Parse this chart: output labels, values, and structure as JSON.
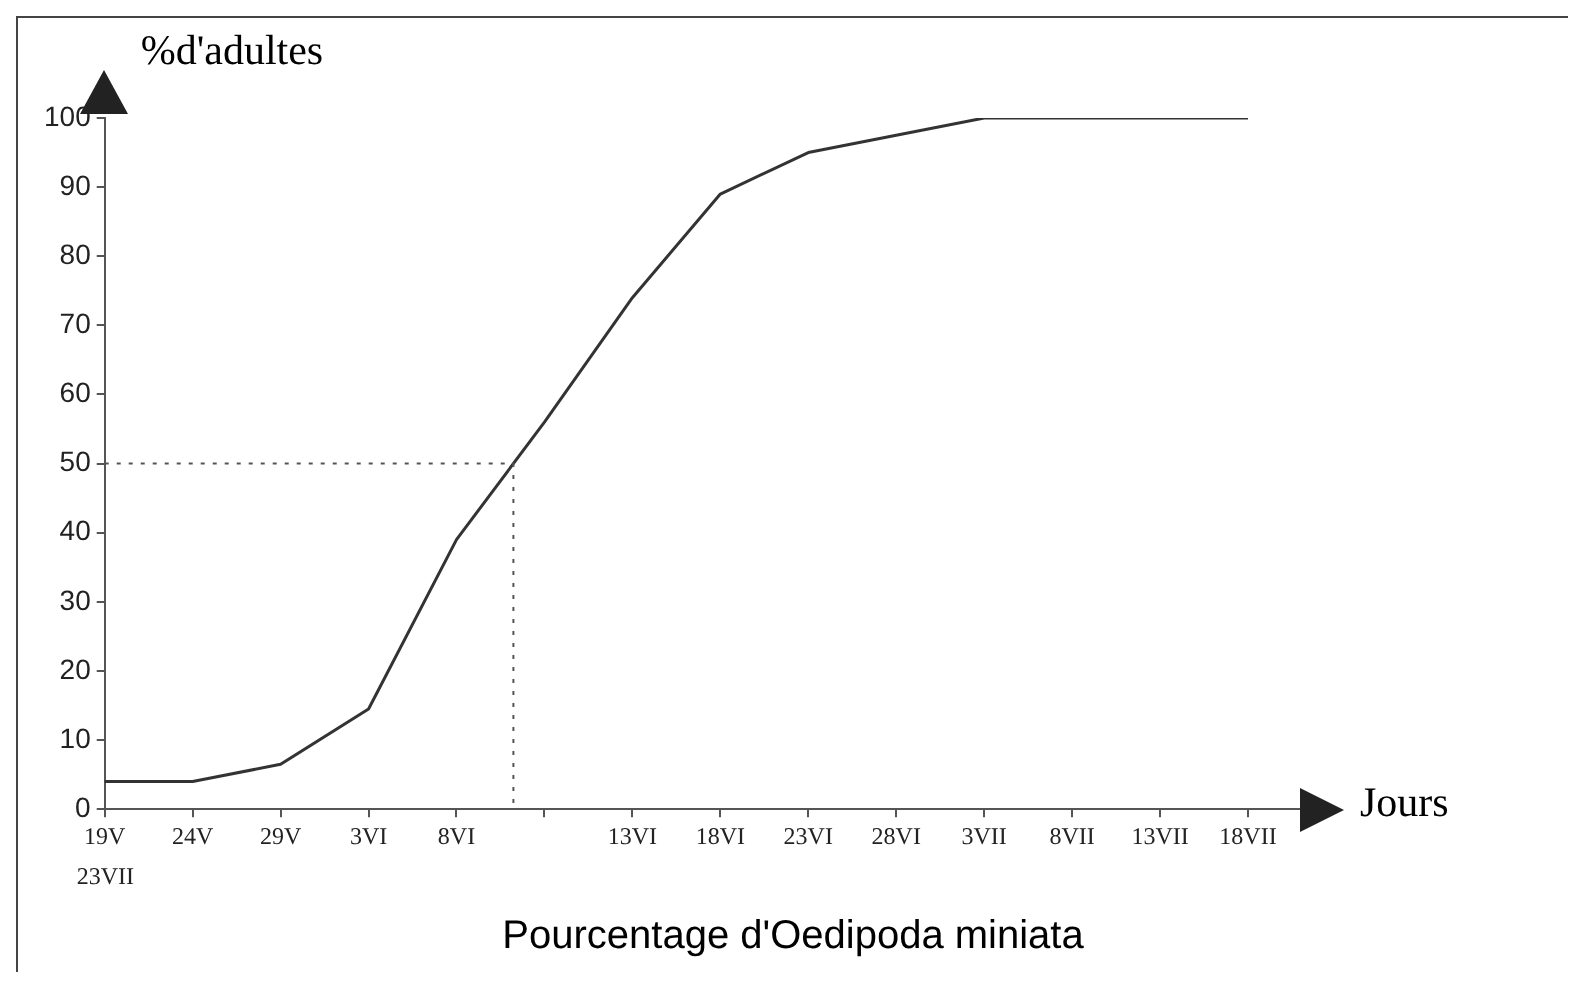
{
  "chart_data": {
    "type": "line",
    "title": "Pourcentage d'Oedipoda miniata",
    "xlabel": "Jours",
    "ylabel": "%d'adultes",
    "categories": [
      "19V",
      "24V",
      "29V",
      "3VI",
      "8VI",
      null,
      "13VI",
      "18VI",
      "23VI",
      "28VI",
      "3VII",
      "8VII",
      "13VII",
      "18VII"
    ],
    "series": [
      {
        "color": "#333333",
        "values": [
          4,
          4,
          6.5,
          14.5,
          39,
          56,
          74,
          89,
          95,
          97.5,
          100,
          100,
          100,
          100
        ]
      }
    ],
    "annotations": [
      "23VII"
    ],
    "ylim": [
      0,
      100
    ],
    "yticks": [
      0,
      10,
      20,
      30,
      40,
      50,
      60,
      70,
      80,
      90,
      100
    ],
    "ref_lines": [
      {
        "axis": "y",
        "value": 50,
        "color": "#555555",
        "line_style": "dotted"
      }
    ],
    "grid": false,
    "legend": false,
    "marker": "none",
    "line_style": "solid"
  }
}
